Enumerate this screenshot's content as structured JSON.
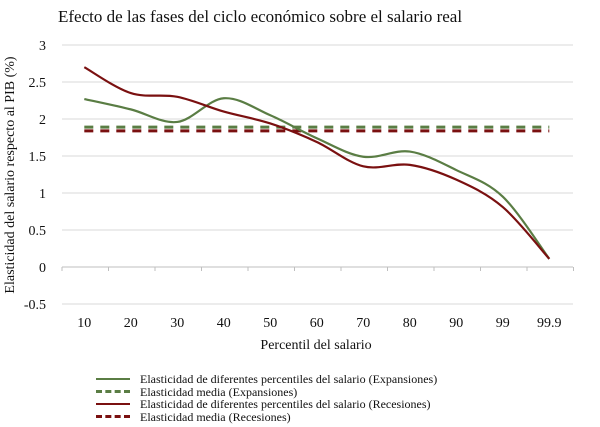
{
  "chart_data": {
    "type": "line",
    "title": "Efecto de las fases del ciclo económico sobre el salario real",
    "xlabel": "Percentil del salario",
    "ylabel": "Elasticidad del salario respecto al PIB (%)",
    "categories": [
      "10",
      "20",
      "30",
      "40",
      "50",
      "60",
      "70",
      "80",
      "90",
      "99",
      "99.9"
    ],
    "ylim": [
      -0.5,
      3
    ],
    "yticks": [
      "-0.5",
      "0",
      "0.5",
      "1",
      "1.5",
      "2",
      "2.5",
      "3"
    ],
    "grid": true,
    "legend_position": "bottom",
    "series": [
      {
        "name": "Elasticidad de diferentes percentiles del salario (Expansiones)",
        "color": "#5a7d44",
        "style": "solid",
        "values": [
          2.27,
          2.13,
          1.96,
          2.28,
          2.05,
          1.74,
          1.49,
          1.56,
          1.31,
          0.95,
          0.11
        ]
      },
      {
        "name": "Elasticidad media (Expansiones)",
        "color": "#5a7d44",
        "style": "dashed",
        "values": [
          1.89,
          1.89,
          1.89,
          1.89,
          1.89,
          1.89,
          1.89,
          1.89,
          1.89,
          1.89,
          1.89
        ]
      },
      {
        "name": "Elasticidad de diferentes percentiles del salario (Recesiones)",
        "color": "#7a1010",
        "style": "solid",
        "values": [
          2.7,
          2.35,
          2.3,
          2.1,
          1.94,
          1.69,
          1.36,
          1.38,
          1.18,
          0.81,
          0.11
        ]
      },
      {
        "name": "Elasticidad media (Recesiones)",
        "color": "#7a1010",
        "style": "dashed",
        "values": [
          1.84,
          1.84,
          1.84,
          1.84,
          1.84,
          1.84,
          1.84,
          1.84,
          1.84,
          1.84,
          1.84
        ]
      }
    ]
  }
}
